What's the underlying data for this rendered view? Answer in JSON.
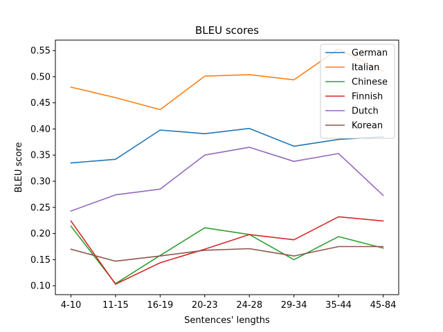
{
  "chart_data": {
    "type": "line",
    "title": "BLEU scores",
    "xlabel": "Sentences' lengths",
    "ylabel": "BLEU score",
    "categories": [
      "4-10",
      "11-15",
      "16-19",
      "20-23",
      "24-28",
      "29-34",
      "35-44",
      "45-84"
    ],
    "ylim": [
      0.083,
      0.57
    ],
    "yticks": [
      "0.10",
      "0.15",
      "0.20",
      "0.25",
      "0.30",
      "0.35",
      "0.40",
      "0.45",
      "0.50",
      "0.55"
    ],
    "grid": false,
    "legend_position": "top-right",
    "series": [
      {
        "name": "German",
        "color": "#1f77b4",
        "values": [
          0.335,
          0.342,
          0.398,
          0.391,
          0.401,
          0.367,
          0.38,
          0.385
        ]
      },
      {
        "name": "Italian",
        "color": "#ff7f0e",
        "values": [
          0.48,
          0.46,
          0.437,
          0.501,
          0.504,
          0.494,
          0.553,
          0.51
        ]
      },
      {
        "name": "Chinese",
        "color": "#2ca02c",
        "values": [
          0.214,
          0.104,
          0.158,
          0.211,
          0.198,
          0.15,
          0.194,
          0.172
        ]
      },
      {
        "name": "Finnish",
        "color": "#d62728",
        "values": [
          0.224,
          0.103,
          0.144,
          0.17,
          0.198,
          0.188,
          0.232,
          0.224
        ]
      },
      {
        "name": "Dutch",
        "color": "#9467bd",
        "values": [
          0.243,
          0.274,
          0.285,
          0.35,
          0.365,
          0.338,
          0.353,
          0.273
        ]
      },
      {
        "name": "Korean",
        "color": "#8c564b",
        "values": [
          0.17,
          0.147,
          0.157,
          0.168,
          0.171,
          0.157,
          0.175,
          0.175
        ]
      }
    ]
  }
}
